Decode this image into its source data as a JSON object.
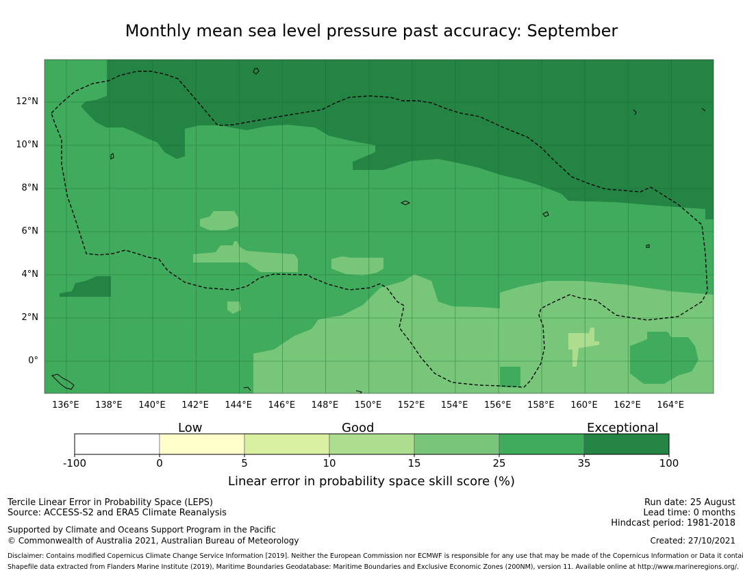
{
  "title": "Monthly mean sea level pressure past accuracy: September",
  "map": {
    "lat_labels": [
      "12°N",
      "10°N",
      "8°N",
      "6°N",
      "4°N",
      "2°N",
      "0°"
    ],
    "lon_labels": [
      "136°E",
      "138°E",
      "140°E",
      "142°E",
      "144°E",
      "146°E",
      "148°E",
      "150°E",
      "152°E",
      "154°E",
      "156°E",
      "158°E",
      "160°E",
      "162°E",
      "164°E"
    ],
    "colors": {
      "c0": "#ffffff",
      "c1": "#ffffcc",
      "c2": "#d9f0a3",
      "c3": "#addd8e",
      "c4": "#78c679",
      "c5": "#41ab5d",
      "c6": "#238443"
    }
  },
  "colorbar": {
    "category_labels": {
      "low": "Low",
      "good": "Good",
      "exceptional": "Exceptional"
    },
    "ticks": [
      "-100",
      "0",
      "5",
      "10",
      "15",
      "25",
      "35",
      "100"
    ],
    "title": "Linear error in probability space skill score (%)"
  },
  "footer": {
    "left_line1": "Tercile Linear Error in Probability Space (LEPS)",
    "left_line2": "Source: ACCESS-S2 and ERA5 Climate Reanalysis",
    "left_line3": "Supported by Climate and Oceans Support Program in the Pacific",
    "left_line4": "© Commonwealth of Australia 2021, Australian Bureau of Meteorology",
    "run_date": "Run date: 25 August",
    "lead_time": "Lead time: 0 months",
    "hindcast": "Hindcast period: 1981-2018",
    "created": "Created: 27/10/2021",
    "disclaimer1": "Disclaimer: Contains modified Copernicus Climate Change Service Information [2019]. Neither the European Commission nor ECMWF is responsible for any use that may be made of the Copernicus Information or Data it contains.",
    "disclaimer2": "Shapefile data extracted from Flanders Marine Institute (2019), Maritime Boundaries Geodatabase: Maritime Boundaries and Exclusive Economic Zones (200NM), version 11. Available online at http://www.marineregions.org/."
  }
}
